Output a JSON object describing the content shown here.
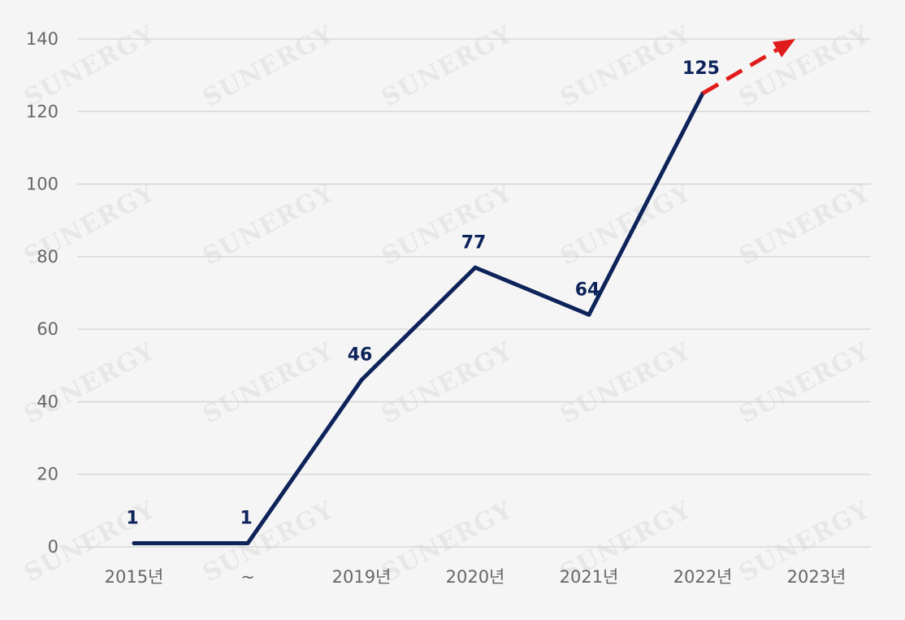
{
  "chart_data": {
    "type": "line",
    "categories": [
      "2015년",
      "~",
      "2019년",
      "2020년",
      "2021년",
      "2022년",
      "2023년"
    ],
    "series": [
      {
        "values": [
          1,
          1,
          46,
          77,
          64,
          125,
          null
        ],
        "color": "#0d2359"
      }
    ],
    "data_labels": [
      "1",
      "1",
      "46",
      "77",
      "64",
      "125",
      ""
    ],
    "projection": {
      "from_category": "2022년",
      "to_value": 140,
      "style": "dashed-arrow",
      "color": "#e01b1b"
    },
    "ylim": [
      0,
      140
    ],
    "yticks": [
      0,
      20,
      40,
      60,
      80,
      100,
      120,
      140
    ],
    "grid": true,
    "legend": "none",
    "title": "",
    "xlabel": "",
    "ylabel": ""
  },
  "watermark": {
    "text": "SUNERGY"
  },
  "colors": {
    "background": "#f5f5f5",
    "grid": "#d4d4d4",
    "line": "#0d2359",
    "projection": "#e01b1b",
    "tick_text": "#666666"
  }
}
